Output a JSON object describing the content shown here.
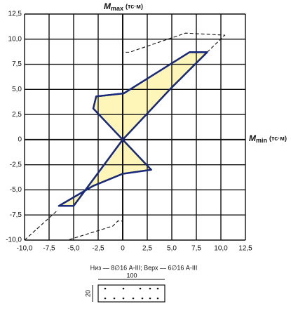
{
  "chart_data": {
    "type": "interaction",
    "y_label": {
      "symbol": "M",
      "sub": "max",
      "unit": "(тс·м)"
    },
    "x_label": {
      "symbol": "M",
      "sub": "min",
      "unit": "(тс·м)"
    },
    "xlim": [
      -10,
      12.5
    ],
    "ylim": [
      -10,
      12.5
    ],
    "xticks": [
      {
        "value": -10,
        "label": "-10,0"
      },
      {
        "value": -7.5,
        "label": "-7,5"
      },
      {
        "value": -5,
        "label": "-5,0"
      },
      {
        "value": -2.5,
        "label": "-2,5"
      },
      0,
      {
        "value": 2.5,
        "label": "2,5"
      },
      {
        "value": 5,
        "label": "5,0"
      },
      {
        "value": 7.5,
        "label": "7,5"
      },
      {
        "value": 10,
        "label": "10,0"
      },
      {
        "value": 12.5,
        "label": "12,5"
      }
    ],
    "yticks": [
      {
        "value": -10,
        "label": "-10,0"
      },
      {
        "value": -7.5,
        "label": "-7,5"
      },
      {
        "value": -5,
        "label": "-5,0"
      },
      {
        "value": -2.5,
        "label": "-2,5"
      },
      0,
      {
        "value": 2.5,
        "label": "2,5"
      },
      {
        "value": 5,
        "label": "5,0"
      },
      {
        "value": 7.5,
        "label": "7,5"
      },
      {
        "value": 10,
        "label": "10,0"
      },
      {
        "value": 12.5,
        "label": "12,5"
      }
    ],
    "grid": true,
    "series": [
      {
        "style": "filled",
        "color": "#1a2a7a",
        "fill": "#fdf6b8",
        "x": [
          0,
          -3.0,
          -2.7,
          0.1,
          6.8,
          8.6,
          5.0,
          0,
          2.9,
          0,
          -3.0,
          -6.5,
          -5.0,
          0
        ],
        "y": [
          0,
          3.1,
          4.3,
          4.6,
          8.7,
          8.7,
          5.2,
          0,
          -3.0,
          -3.4,
          -4.6,
          -6.6,
          -6.6,
          0
        ]
      },
      {
        "style": "dashed",
        "color": "#111111",
        "x": [
          -10,
          -6.6,
          null,
          -10,
          -5.6,
          -1.0,
          -0.5,
          0,
          null,
          8.6,
          10.4,
          6.4,
          0.7,
          0,
          0
        ],
        "y": [
          -10,
          -7.0,
          null,
          -10,
          -10,
          -8.6,
          -8.1,
          -8.1,
          null,
          8.7,
          10.4,
          10.6,
          8.7,
          8.7,
          8.3
        ]
      }
    ],
    "caption": "Низ — 8∅16 А-III; Верх — 6∅16 А-III",
    "section": {
      "width": "100",
      "height": "20"
    }
  }
}
